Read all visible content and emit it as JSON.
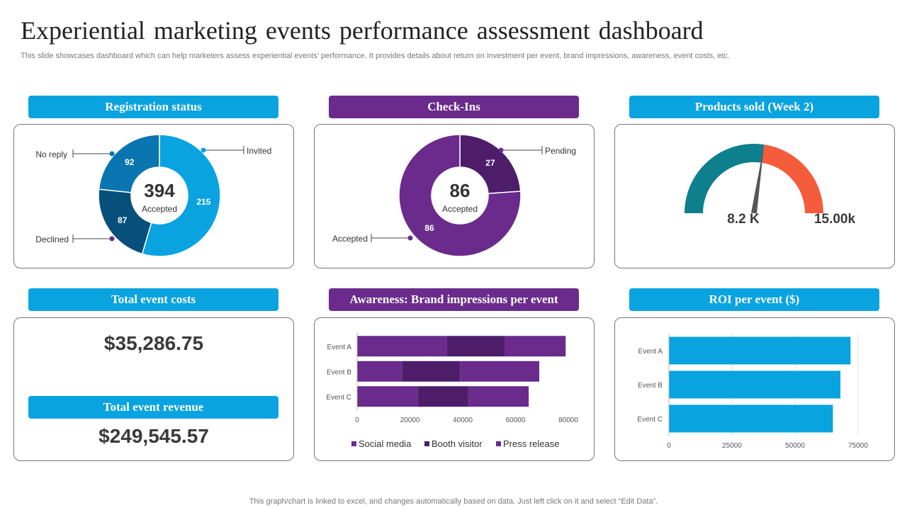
{
  "page": {
    "title": "Experiential marketing events performance assessment dashboard",
    "subtitle": "This slide showcases dashboard which can help marketers assess experiential events’ performance. It provides details about return on investment per event,  brand impressions, awareness, event costs, etc.",
    "footer": "This graph/chart is linked to excel,  and changes automatically based on data. Just left click on it and select “Edit Data”."
  },
  "colors": {
    "blue": "#09a3e0",
    "purple": "#6a2b8c",
    "reg_invited": "#09a3e0",
    "reg_noreply": "#0a75b0",
    "reg_declined": "#08507c",
    "checkin_accepted": "#6a2b8c",
    "checkin_pending": "#4d1d6a",
    "gauge_teal": "#0e7f8c",
    "gauge_orange": "#f55c3c",
    "social": "#6a2b8c",
    "booth": "#4d1d6a",
    "press": "#6a2b8c",
    "roi_bar": "#09a3e0"
  },
  "headers": {
    "registration": "Registration status",
    "checkins": "Check-Ins",
    "products": "Products sold (Week 2)",
    "costs": "Total event costs",
    "awareness": "Awareness: Brand impressions per event",
    "roi": "ROI per event ($)",
    "revenue": "Total event revenue"
  },
  "kpis": {
    "total_event_costs": "$35,286.75",
    "total_event_revenue": "$249,545.57"
  },
  "chart_data": [
    {
      "id": "registration",
      "type": "pie",
      "title": "Registration status",
      "center_value": "394",
      "center_label": "Accepted",
      "slices": [
        {
          "label": "Invited",
          "value": 215,
          "value_text": "215"
        },
        {
          "label": "Declined",
          "value": 87,
          "value_text": "87"
        },
        {
          "label": "No reply",
          "value": 92,
          "value_text": "92"
        }
      ]
    },
    {
      "id": "checkins",
      "type": "pie",
      "title": "Check-Ins",
      "center_value": "86",
      "center_label": "Accepted",
      "slices": [
        {
          "label": "Pending",
          "value": 27,
          "value_text": "27"
        },
        {
          "label": "Accepted",
          "value": 86,
          "value_text": "86"
        }
      ]
    },
    {
      "id": "products",
      "type": "gauge",
      "title": "Products sold (Week 2)",
      "value": 8.2,
      "max": 15.0,
      "value_text": "8.2 K",
      "max_text": "15.00k"
    },
    {
      "id": "awareness",
      "type": "bar",
      "orientation": "horizontal",
      "stacked": true,
      "title": "Awareness: Brand impressions per event",
      "categories": [
        "Event A",
        "Event B",
        "Event C"
      ],
      "series": [
        {
          "name": "Social media",
          "values": [
            34000,
            17000,
            23000
          ]
        },
        {
          "name": "Booth visitor",
          "values": [
            22000,
            22000,
            19000
          ]
        },
        {
          "name": "Press release",
          "values": [
            23000,
            30000,
            23000
          ]
        }
      ],
      "xlim": [
        0,
        80000
      ],
      "xticks": [
        "0",
        "20000",
        "40000",
        "60000",
        "80000"
      ],
      "legend": "bottom"
    },
    {
      "id": "roi",
      "type": "bar",
      "orientation": "horizontal",
      "title": "ROI per event ($)",
      "categories": [
        "Event A",
        "Event B",
        "Event C"
      ],
      "values": [
        72000,
        68000,
        65000
      ],
      "xlim": [
        0,
        75000
      ],
      "xticks": [
        "0",
        "25000",
        "50000",
        "75000"
      ]
    }
  ]
}
